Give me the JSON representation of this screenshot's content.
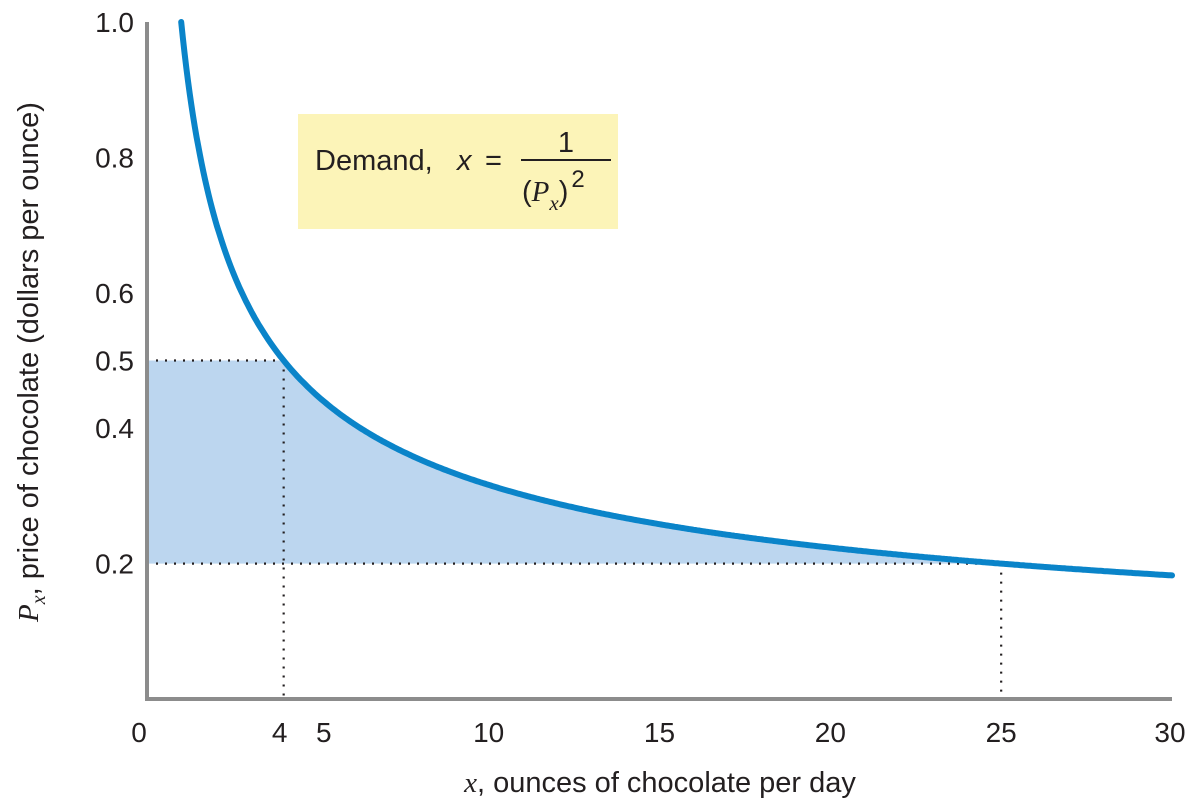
{
  "chart_data": {
    "type": "line",
    "xlim": [
      0,
      30
    ],
    "ylim": [
      0,
      1.0
    ],
    "x_ticks": [
      "0",
      "4",
      "5",
      "10",
      "15",
      "20",
      "25",
      "30"
    ],
    "y_ticks": [
      "1.0",
      "0.8",
      "0.6",
      "0.5",
      "0.4",
      "0.2"
    ],
    "xlabel": {
      "var": "x",
      "text": ", ounces of chocolate per day"
    },
    "ylabel": {
      "var": "P",
      "sub": "x",
      "text": ", price of chocolate (dollars per ounce)"
    },
    "series": [
      {
        "name": "Demand",
        "equation": "x = 1/(Px)^2",
        "color": "#0a84c9",
        "x": [
          1.0,
          1.25,
          1.5,
          2,
          3,
          4,
          5,
          6,
          8,
          10,
          12,
          15,
          18,
          20,
          22,
          25,
          28,
          30
        ],
        "y": [
          1.0,
          0.894,
          0.816,
          0.707,
          0.577,
          0.5,
          0.447,
          0.408,
          0.354,
          0.316,
          0.289,
          0.258,
          0.236,
          0.224,
          0.213,
          0.2,
          0.189,
          0.183
        ]
      }
    ],
    "shaded_area": {
      "color": "#bcd6ef",
      "x_from": 0,
      "x_to": 25,
      "y_from": 0.2,
      "y_to": 0.5
    },
    "reference_points": [
      {
        "x": 4,
        "y": 0.5
      },
      {
        "x": 25,
        "y": 0.2
      }
    ],
    "legend": {
      "label": "Demand,",
      "var": "x",
      "eq": "=",
      "numerator": "1",
      "denominator_open": "(",
      "denominator_var": "P",
      "denominator_sub": "x",
      "denominator_close": ")",
      "exponent": "2",
      "background": "#fcf4b8",
      "placement": "upper-center"
    },
    "colors": {
      "axis": "#8c8c8c",
      "curve": "#0a84c9",
      "fill": "#bcd6ef",
      "text": "#231f20"
    }
  }
}
